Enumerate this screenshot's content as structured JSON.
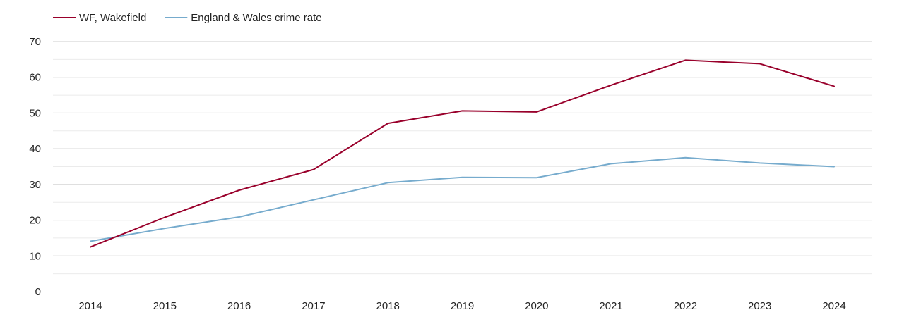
{
  "chart_data": {
    "type": "line",
    "title": "",
    "xlabel": "",
    "ylabel": "",
    "categories": [
      "2014",
      "2015",
      "2016",
      "2017",
      "2018",
      "2019",
      "2020",
      "2021",
      "2022",
      "2023",
      "2024"
    ],
    "ylim": [
      0,
      70
    ],
    "yticks": [
      0,
      10,
      20,
      30,
      40,
      50,
      60,
      70
    ],
    "grid": true,
    "legend_position": "top-left",
    "series": [
      {
        "name": "WF, Wakefield",
        "color": "#99002b",
        "values": [
          12.5,
          20.8,
          28.4,
          34.2,
          47.1,
          50.6,
          50.3,
          57.8,
          64.8,
          63.8,
          57.5
        ]
      },
      {
        "name": "England & Wales crime rate",
        "color": "#76abcd",
        "values": [
          14.1,
          17.7,
          20.9,
          25.7,
          30.5,
          32.0,
          31.9,
          35.8,
          37.5,
          36.0,
          35.0
        ]
      }
    ]
  }
}
